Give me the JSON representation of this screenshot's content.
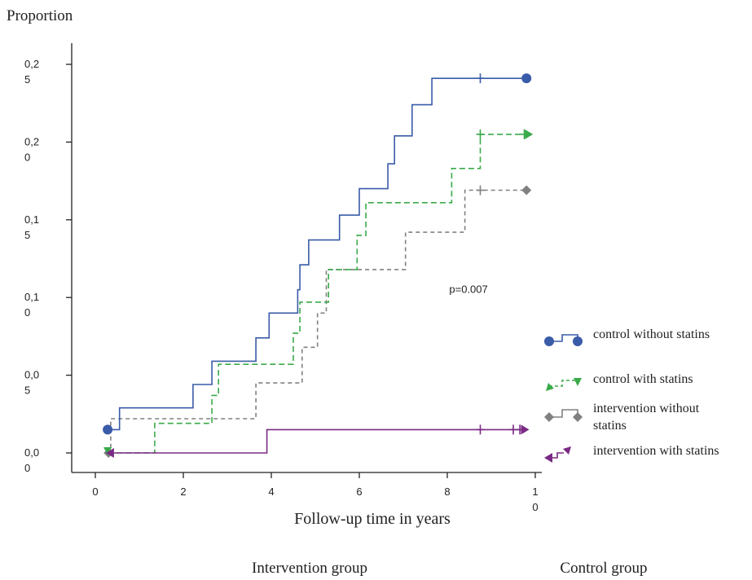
{
  "chart_data": {
    "type": "line",
    "title": "",
    "ylabel": "Proportion",
    "xlabel": "Follow-up time in years",
    "xlim": [
      -0.2,
      10.5
    ],
    "ylim": [
      0,
      0.25
    ],
    "x_ticks": [
      {
        "value": 0,
        "line1": "0",
        "line2": ""
      },
      {
        "value": 2,
        "line1": "2",
        "line2": ""
      },
      {
        "value": 4,
        "line1": "4",
        "line2": ""
      },
      {
        "value": 6,
        "line1": "6",
        "line2": ""
      },
      {
        "value": 8,
        "line1": "8",
        "line2": ""
      },
      {
        "value": 10,
        "line1": "1",
        "line2": "0"
      }
    ],
    "y_ticks": [
      {
        "value": 0.0,
        "line1": "0,0",
        "line2": "0"
      },
      {
        "value": 0.05,
        "line1": "0,0",
        "line2": "5"
      },
      {
        "value": 0.1,
        "line1": "0,1",
        "line2": "0"
      },
      {
        "value": 0.15,
        "line1": "0,1",
        "line2": "5"
      },
      {
        "value": 0.2,
        "line1": "0,2",
        "line2": "0"
      },
      {
        "value": 0.25,
        "line1": "0,2",
        "line2": "5"
      }
    ],
    "annotation": {
      "text": "p=0.007",
      "x": 8.6,
      "y": 0.105
    },
    "series": [
      {
        "name": "control without statins",
        "color": "#3a5ba8",
        "dash": "",
        "marker": "circle",
        "points": [
          [
            0.28,
            0.015
          ],
          [
            0.55,
            0.015
          ],
          [
            0.55,
            0.029
          ],
          [
            2.22,
            0.029
          ],
          [
            2.22,
            0.044
          ],
          [
            2.65,
            0.044
          ],
          [
            2.65,
            0.059
          ],
          [
            3.65,
            0.059
          ],
          [
            3.65,
            0.074
          ],
          [
            3.95,
            0.074
          ],
          [
            3.95,
            0.09
          ],
          [
            4.6,
            0.09
          ],
          [
            4.6,
            0.105
          ],
          [
            4.65,
            0.105
          ],
          [
            4.65,
            0.121
          ],
          [
            4.85,
            0.121
          ],
          [
            4.85,
            0.137
          ],
          [
            5.55,
            0.137
          ],
          [
            5.55,
            0.153
          ],
          [
            6.0,
            0.153
          ],
          [
            6.0,
            0.17
          ],
          [
            6.65,
            0.17
          ],
          [
            6.65,
            0.186
          ],
          [
            6.8,
            0.186
          ],
          [
            6.8,
            0.204
          ],
          [
            7.2,
            0.204
          ],
          [
            7.2,
            0.224
          ],
          [
            7.65,
            0.224
          ],
          [
            7.65,
            0.241
          ],
          [
            9.8,
            0.241
          ]
        ],
        "censor": [
          8.75
        ],
        "end_marker": 9.8
      },
      {
        "name": "control with statins",
        "color": "#3aaa4a",
        "dash": "7,4",
        "marker": "arrow-down",
        "points": [
          [
            0.28,
            0.0
          ],
          [
            1.35,
            0.0
          ],
          [
            1.35,
            0.019
          ],
          [
            2.65,
            0.019
          ],
          [
            2.65,
            0.037
          ],
          [
            2.8,
            0.037
          ],
          [
            2.8,
            0.057
          ],
          [
            4.5,
            0.057
          ],
          [
            4.5,
            0.077
          ],
          [
            4.65,
            0.077
          ],
          [
            4.65,
            0.097
          ],
          [
            5.3,
            0.097
          ],
          [
            5.3,
            0.118
          ],
          [
            5.95,
            0.118
          ],
          [
            5.95,
            0.14
          ],
          [
            6.15,
            0.14
          ],
          [
            6.15,
            0.161
          ],
          [
            8.1,
            0.161
          ],
          [
            8.1,
            0.183
          ],
          [
            8.75,
            0.183
          ],
          [
            8.75,
            0.205
          ],
          [
            9.8,
            0.205
          ]
        ],
        "censor": [
          8.75,
          9.75
        ],
        "end_marker": 9.8
      },
      {
        "name": "intervention without statins",
        "color": "#808080",
        "dash": "5,4",
        "marker": "diamond",
        "points": [
          [
            0.3,
            0.0
          ],
          [
            0.35,
            0.0
          ],
          [
            0.35,
            0.022
          ],
          [
            3.65,
            0.022
          ],
          [
            3.65,
            0.045
          ],
          [
            4.7,
            0.045
          ],
          [
            4.7,
            0.068
          ],
          [
            5.05,
            0.068
          ],
          [
            5.05,
            0.09
          ],
          [
            5.25,
            0.09
          ],
          [
            5.25,
            0.118
          ],
          [
            7.05,
            0.118
          ],
          [
            7.05,
            0.142
          ],
          [
            8.4,
            0.142
          ],
          [
            8.4,
            0.169
          ],
          [
            9.8,
            0.169
          ]
        ],
        "censor": [
          8.75
        ],
        "end_marker": 9.8
      },
      {
        "name": "intervention with statins",
        "color": "#7a2a84",
        "dash": "",
        "marker": "arrow-left",
        "points": [
          [
            0.35,
            0.0
          ],
          [
            3.9,
            0.0
          ],
          [
            3.9,
            0.015
          ],
          [
            9.8,
            0.015
          ]
        ],
        "censor": [
          8.75,
          9.5,
          9.65
        ],
        "end_marker": 9.75
      }
    ],
    "legend": {
      "placement": "right",
      "entries": [
        {
          "line1": "control without statins",
          "line2": ""
        },
        {
          "line1": "control with statins",
          "line2": ""
        },
        {
          "line1": "intervention without",
          "line2": "statins"
        },
        {
          "line1": "intervention with statins",
          "line2": ""
        }
      ]
    },
    "group_labels": [
      "Intervention group",
      "Control group"
    ]
  }
}
